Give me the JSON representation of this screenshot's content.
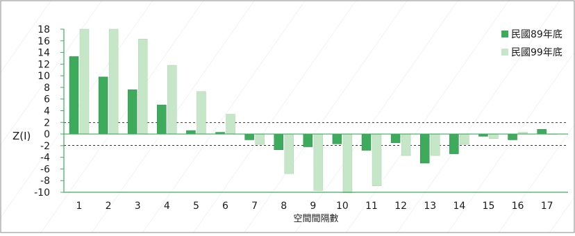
{
  "chart_data": {
    "type": "bar",
    "ylabel": "Z(I)",
    "xlabel": "空間間隔數",
    "ylim": [
      -10,
      18
    ],
    "yticks": [
      18,
      16,
      14,
      12,
      10,
      8,
      6,
      4,
      2,
      0,
      -2,
      -4,
      -6,
      -8,
      -10
    ],
    "categories": [
      "1",
      "2",
      "3",
      "4",
      "5",
      "6",
      "7",
      "8",
      "9",
      "10",
      "11",
      "12",
      "13",
      "14",
      "15",
      "16",
      "17"
    ],
    "series": [
      {
        "name": "民國89年底",
        "color": "#3daa5c",
        "values": [
          13.3,
          9.8,
          7.6,
          5.0,
          0.6,
          0.3,
          -1.0,
          -2.7,
          -2.2,
          -1.7,
          -2.8,
          -1.5,
          -5.0,
          -3.4,
          -0.4,
          -1.0,
          0.8
        ]
      },
      {
        "name": "民國99年底",
        "color": "#c6e6c8",
        "values": [
          18.0,
          18.0,
          16.3,
          11.8,
          7.3,
          3.4,
          -1.8,
          -6.8,
          -9.7,
          -10.1,
          -8.9,
          -3.7,
          -3.7,
          -1.8,
          -0.8,
          0.3,
          0.0
        ]
      }
    ],
    "reference_lines": [
      1.96,
      -1.96
    ],
    "grid": false,
    "legend_position": "top-right"
  }
}
